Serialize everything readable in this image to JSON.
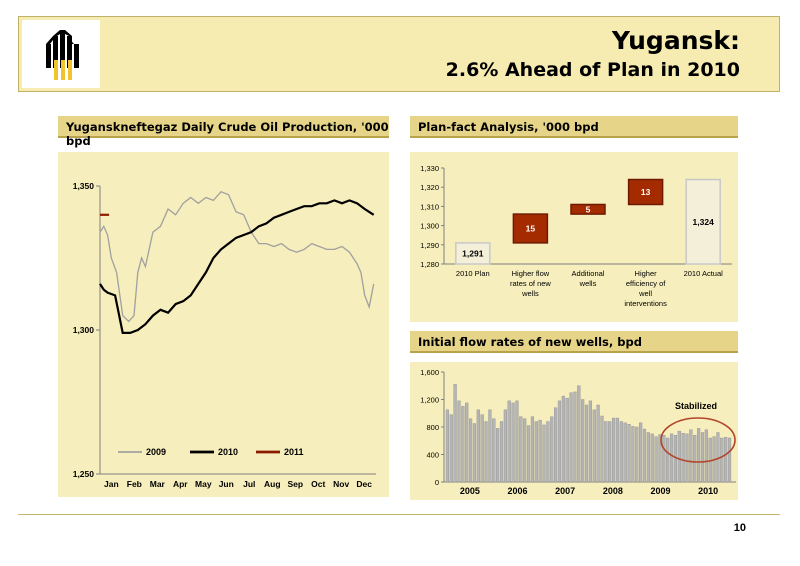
{
  "header": {
    "title_line1": "Yugansk:",
    "title_line2": "2.6% Ahead of Plan in 2010"
  },
  "page_number": "10",
  "colors": {
    "y2009": "#a0a0a0",
    "y2010": "#000000",
    "y2011": "#8b1a00",
    "bar_red": "#a42a00",
    "bar_grey": "#b5b5b5",
    "highlight": "#b2452c"
  },
  "chart_data": [
    {
      "id": "daily_production",
      "type": "line",
      "title": "Yuganskneftegaz Daily Crude Oil Production, '000 bpd",
      "ylim": [
        1250,
        1350
      ],
      "yticks": [
        "1,350",
        "1,300",
        "1,250"
      ],
      "ytick_values": [
        1350,
        1300,
        1250
      ],
      "months": [
        "Jan",
        "Feb",
        "Mar",
        "Apr",
        "May",
        "Jun",
        "Jul",
        "Aug",
        "Sep",
        "Oct",
        "Nov",
        "Dec"
      ],
      "legend": [
        "2009",
        "2010",
        "2011"
      ],
      "series": [
        {
          "name": "2009",
          "x": [
            0,
            5,
            10,
            15,
            22,
            30,
            38,
            45,
            50,
            55,
            60,
            70,
            80,
            90,
            100,
            110,
            120,
            130,
            140,
            150,
            160,
            170,
            180,
            190,
            200,
            210,
            220,
            230,
            240,
            250,
            260,
            270,
            280,
            290,
            300,
            310,
            320,
            330,
            340,
            345,
            350,
            356,
            362
          ],
          "y": [
            1334,
            1336,
            1333,
            1325,
            1320,
            1305,
            1303,
            1305,
            1320,
            1325,
            1322,
            1334,
            1336,
            1342,
            1340,
            1344,
            1346,
            1344,
            1346,
            1345,
            1348,
            1347,
            1341,
            1340,
            1334,
            1330,
            1330,
            1329,
            1330,
            1328,
            1327,
            1328,
            1330,
            1329,
            1328,
            1328,
            1329,
            1327,
            1323,
            1320,
            1312,
            1308,
            1316
          ]
        },
        {
          "name": "2010",
          "x": [
            0,
            5,
            10,
            20,
            30,
            40,
            50,
            60,
            70,
            80,
            90,
            100,
            110,
            120,
            130,
            140,
            150,
            160,
            170,
            180,
            190,
            200,
            210,
            220,
            230,
            240,
            250,
            260,
            270,
            280,
            290,
            300,
            310,
            320,
            330,
            340,
            350,
            356,
            362
          ],
          "y": [
            1316,
            1314,
            1313,
            1312,
            1299,
            1299,
            1300,
            1302,
            1305,
            1307,
            1306,
            1309,
            1310,
            1312,
            1316,
            1320,
            1325,
            1328,
            1330,
            1332,
            1333,
            1334,
            1336,
            1337,
            1339,
            1340,
            1341,
            1342,
            1343,
            1343,
            1344,
            1344,
            1345,
            1344,
            1345,
            1344,
            1342,
            1341,
            1340
          ]
        },
        {
          "name": "2011",
          "x": [
            0,
            12
          ],
          "y": [
            1340,
            1340
          ]
        }
      ]
    },
    {
      "id": "plan_fact",
      "type": "bar",
      "title": "Plan-fact Analysis, '000 bpd",
      "ylim": [
        1280,
        1330
      ],
      "yticks": [
        "1,330",
        "1,320",
        "1,310",
        "1,300",
        "1,290",
        "1,280"
      ],
      "ytick_values": [
        1330,
        1320,
        1310,
        1300,
        1290,
        1280
      ],
      "categories": [
        "2010 Plan",
        "Higher flow rates of new wells",
        "Additional wells",
        "Higher efficiency of well interventions",
        "2010 Actual"
      ],
      "category_lines": [
        [
          "2010 Plan"
        ],
        [
          "Higher flow",
          "rates of new",
          "wells"
        ],
        [
          "Additional",
          "wells"
        ],
        [
          "Higher",
          "efficiency of",
          "well",
          "interventions"
        ],
        [
          "2010 Actual"
        ]
      ],
      "bars": [
        {
          "base": 1280,
          "value": 1291,
          "label": "1,291",
          "kind": "total"
        },
        {
          "base": 1291,
          "value": 1306,
          "label": "15",
          "kind": "delta"
        },
        {
          "base": 1306,
          "value": 1311,
          "label": "5",
          "kind": "delta"
        },
        {
          "base": 1311,
          "value": 1324,
          "label": "13",
          "kind": "delta"
        },
        {
          "base": 1280,
          "value": 1324,
          "label": "1,324",
          "kind": "total"
        }
      ]
    },
    {
      "id": "initial_flow",
      "type": "bar",
      "title": "Initial flow rates of new wells, bpd",
      "ylim": [
        0,
        1600
      ],
      "yticks": [
        "1,600",
        "1,200",
        "800",
        "400",
        "0"
      ],
      "ytick_values": [
        1600,
        1200,
        800,
        400,
        0
      ],
      "years": [
        "2005",
        "2006",
        "2007",
        "2008",
        "2009",
        "2010"
      ],
      "annotation": "Stabilized",
      "values": [
        1050,
        980,
        1420,
        1180,
        1100,
        1150,
        920,
        850,
        1050,
        980,
        880,
        1050,
        920,
        780,
        880,
        1050,
        1180,
        1150,
        1180,
        950,
        920,
        820,
        950,
        880,
        900,
        830,
        880,
        950,
        1080,
        1180,
        1250,
        1220,
        1300,
        1310,
        1400,
        1200,
        1120,
        1180,
        1050,
        1120,
        960,
        880,
        880,
        930,
        930,
        880,
        860,
        840,
        810,
        800,
        860,
        770,
        720,
        700,
        660,
        690,
        680,
        640,
        700,
        680,
        740,
        710,
        700,
        760,
        680,
        780,
        720,
        760,
        640,
        660,
        720,
        640,
        650,
        640
      ]
    }
  ]
}
